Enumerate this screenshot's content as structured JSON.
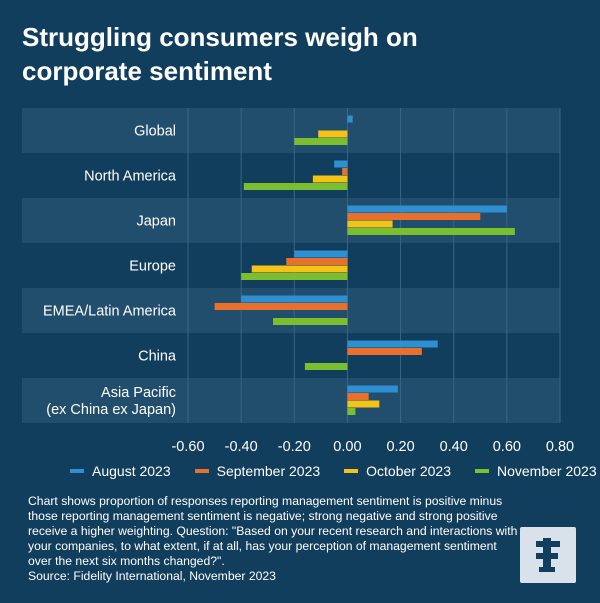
{
  "title_line1": "Struggling consumers weigh on",
  "title_line2": "corporate sentiment",
  "note": "Chart shows proportion of responses reporting management sentiment is positive minus those reporting management sentiment is negative; strong negative and strong positive receive a higher weighting. Question: \"Based on your recent research and interactions with your companies, to what extent, if at all, has your perception of management sentiment over the next six months changed?\".",
  "source": "Source: Fidelity International, November 2023",
  "logo_icon": "fidelity-f-icon",
  "colors": {
    "background": "#123e5e",
    "band": "#224e6e",
    "grid": "#3a6585",
    "august": "#2e8fd1",
    "september": "#e8702a",
    "october": "#f3c316",
    "november": "#7bbf2e"
  },
  "chart_data": {
    "type": "bar",
    "orientation": "horizontal",
    "categories": [
      "Global",
      "North America",
      "Japan",
      "Europe",
      "EMEA/Latin America",
      "China",
      "Asia Pacific\n(ex China ex Japan)"
    ],
    "series": [
      {
        "name": "August 2023",
        "values": [
          0.02,
          -0.05,
          0.6,
          -0.2,
          -0.4,
          0.34,
          0.19
        ]
      },
      {
        "name": "September 2023",
        "values": [
          0.0,
          -0.02,
          0.5,
          -0.23,
          -0.5,
          0.28,
          0.08
        ]
      },
      {
        "name": "October 2023",
        "values": [
          -0.11,
          -0.13,
          0.17,
          -0.36,
          0.0,
          0.0,
          0.12
        ]
      },
      {
        "name": "November 2023",
        "values": [
          -0.2,
          -0.39,
          0.63,
          -0.4,
          -0.28,
          -0.16,
          0.03
        ]
      }
    ],
    "xlim": [
      -0.6,
      0.8
    ],
    "xticks": [
      -0.6,
      -0.4,
      -0.2,
      0.0,
      0.2,
      0.4,
      0.6,
      0.8
    ],
    "tick_labels": [
      "-0.60",
      "-0.40",
      "-0.20",
      "0.00",
      "0.20",
      "0.40",
      "0.60",
      "0.80"
    ],
    "legend_position": "bottom",
    "grid": true
  }
}
